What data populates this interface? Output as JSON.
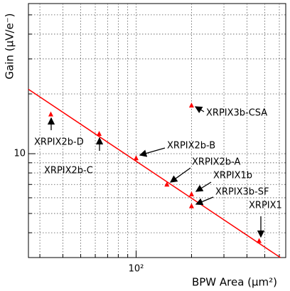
{
  "chart_data": {
    "type": "scatter",
    "x_label": "BPW Area (µm²)",
    "y_label": "Gain (µV/e⁻)",
    "log_x": true,
    "log_y": true,
    "grid": true,
    "xlim": [
      26,
      650
    ],
    "ylim": [
      3,
      57
    ],
    "xticks": [
      {
        "value": 100,
        "label": "10²"
      }
    ],
    "yticks": [
      10
    ],
    "x_minor_ticks": [
      30,
      40,
      50,
      60,
      70,
      80,
      90,
      200,
      300,
      400,
      500,
      600
    ],
    "y_minor_ticks": [
      4,
      5,
      6,
      7,
      8,
      9,
      20,
      30,
      40,
      50
    ],
    "series": [
      {
        "name": "XRPIX",
        "color": "#ff0000",
        "x": [
          34.4,
          63,
          100,
          147,
          200,
          200,
          200,
          466
        ],
        "values": [
          15.8,
          12.6,
          9.5,
          7.0,
          6.25,
          5.45,
          17.5,
          3.64
        ],
        "labels": [
          "XRPIX2b-D",
          "XRPIX2b-C",
          "XRPIX2b-B",
          "XRPIX2b-A",
          "XRPIX1b",
          "XRPIX3b-SF",
          "XRPIX3b-CSA",
          "XRPIX1"
        ]
      }
    ],
    "fit_line": {
      "color": "#ff0000",
      "x": [
        26,
        608
      ],
      "values": [
        21.1,
        3.0
      ]
    }
  }
}
